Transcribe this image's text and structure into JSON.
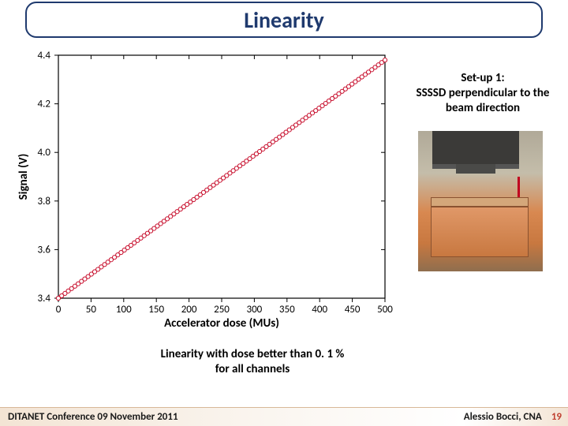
{
  "title": "Linearity",
  "setup": {
    "line1": "Set-up 1:",
    "line2": "SSSSD perpendicular to the beam direction"
  },
  "note": {
    "line1": "Linearity with dose better than 0. 1 %",
    "line2": "for all channels"
  },
  "footer": {
    "left": "DITANET Conference 09 November 2011",
    "right": "Alessio Bocci, CNA",
    "page": "19"
  },
  "chart": {
    "type": "scatter-linear",
    "background_color": "#ffffff",
    "border_color": "#000000",
    "xlabel": "Accelerator dose (MUs)",
    "ylabel": "Signal (V)",
    "label_fontsize": 15,
    "label_fontweight": "bold",
    "tick_fontsize": 13,
    "axis_color": "#000000",
    "xlim": [
      0,
      500
    ],
    "xtick_step": 50,
    "ylim": [
      3.4,
      4.4
    ],
    "ytick_step": 0.2,
    "line_color": "#c8102e",
    "line_width": 1.2,
    "marker_style": "circle",
    "marker_size": 2.6,
    "marker_face": "#ffffff",
    "marker_edge": "#c8102e",
    "n_points": 100,
    "y_start": 3.4,
    "y_end": 4.38
  }
}
